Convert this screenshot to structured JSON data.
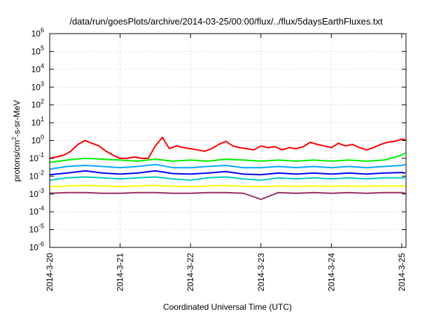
{
  "chart_data": {
    "type": "line",
    "title": "/data/run/goesPlots/archive/2014-03-25/00:00/flux/../flux/5daysEarthFluxes.txt",
    "xlabel": "Coordinated Universal Time (UTC)",
    "ylabel": {
      "prefix": "protons/cm",
      "sup": "2",
      "suffix": "-s-sr-MeV"
    },
    "yscale": "log",
    "ylim": [
      1e-06,
      1000000.0
    ],
    "y_ticks": [
      {
        "value": 1e-06,
        "base": "10",
        "exp": "-6"
      },
      {
        "value": 1e-05,
        "base": "10",
        "exp": "-5"
      },
      {
        "value": 0.0001,
        "base": "10",
        "exp": "-4"
      },
      {
        "value": 0.001,
        "base": "10",
        "exp": "-3"
      },
      {
        "value": 0.01,
        "base": "10",
        "exp": "-2"
      },
      {
        "value": 0.1,
        "base": "10",
        "exp": "-1"
      },
      {
        "value": 1.0,
        "base": "10",
        "exp": "0"
      },
      {
        "value": 10.0,
        "base": "10",
        "exp": "1"
      },
      {
        "value": 100.0,
        "base": "10",
        "exp": "2"
      },
      {
        "value": 1000.0,
        "base": "10",
        "exp": "3"
      },
      {
        "value": 10000.0,
        "base": "10",
        "exp": "4"
      },
      {
        "value": 100000.0,
        "base": "10",
        "exp": "5"
      },
      {
        "value": 1000000.0,
        "base": "10",
        "exp": "6"
      }
    ],
    "x_ticks": [
      {
        "day": 0,
        "label": "2014-3-20"
      },
      {
        "day": 1,
        "label": "2014-3-21"
      },
      {
        "day": 2,
        "label": "2014-3-22"
      },
      {
        "day": 3,
        "label": "2014-3-23"
      },
      {
        "day": 4,
        "label": "2014-3-24"
      },
      {
        "day": 5,
        "label": "2014-3-25"
      }
    ],
    "xlim_days": [
      0,
      5.06
    ],
    "grid": true,
    "legend": "none",
    "series": [
      {
        "color": "#ff0000",
        "x": [
          0,
          0.1,
          0.2,
          0.3,
          0.4,
          0.5,
          0.6,
          0.7,
          0.8,
          0.9,
          1.0,
          1.1,
          1.2,
          1.3,
          1.4,
          1.5,
          1.6,
          1.7,
          1.8,
          1.9,
          2.0,
          2.1,
          2.2,
          2.3,
          2.4,
          2.5,
          2.6,
          2.7,
          2.8,
          2.9,
          3.0,
          3.1,
          3.2,
          3.3,
          3.4,
          3.5,
          3.6,
          3.7,
          3.8,
          3.9,
          4.0,
          4.1,
          4.2,
          4.3,
          4.4,
          4.5,
          4.6,
          4.7,
          4.8,
          4.9,
          5.0,
          5.05
        ],
        "y": [
          0.1,
          0.12,
          0.15,
          0.25,
          0.6,
          1.0,
          0.7,
          0.5,
          0.25,
          0.15,
          0.1,
          0.1,
          0.12,
          0.1,
          0.1,
          0.5,
          1.5,
          0.35,
          0.5,
          0.4,
          0.35,
          0.3,
          0.25,
          0.35,
          0.6,
          0.9,
          0.5,
          0.4,
          0.35,
          0.3,
          0.5,
          0.4,
          0.45,
          0.3,
          0.4,
          0.35,
          0.45,
          0.8,
          0.6,
          0.5,
          0.4,
          0.7,
          0.5,
          0.6,
          0.4,
          0.3,
          0.4,
          0.6,
          0.8,
          0.9,
          1.2,
          1.1
        ]
      },
      {
        "color": "#00ee00",
        "x": [
          0,
          0.25,
          0.5,
          0.75,
          1.0,
          1.25,
          1.5,
          1.75,
          2.0,
          2.25,
          2.5,
          2.75,
          3.0,
          3.25,
          3.5,
          3.75,
          4.0,
          4.25,
          4.5,
          4.75,
          5.0,
          5.05
        ],
        "y": [
          0.06,
          0.08,
          0.1,
          0.09,
          0.08,
          0.07,
          0.09,
          0.07,
          0.08,
          0.07,
          0.09,
          0.08,
          0.07,
          0.08,
          0.07,
          0.08,
          0.07,
          0.08,
          0.07,
          0.08,
          0.15,
          0.2
        ]
      },
      {
        "color": "#00aaff",
        "x": [
          0,
          0.25,
          0.5,
          0.75,
          1.0,
          1.25,
          1.5,
          1.75,
          2.0,
          2.25,
          2.5,
          2.75,
          3.0,
          3.25,
          3.5,
          3.75,
          4.0,
          4.25,
          4.5,
          4.75,
          5.0,
          5.05
        ],
        "y": [
          0.025,
          0.035,
          0.04,
          0.035,
          0.03,
          0.035,
          0.045,
          0.03,
          0.03,
          0.035,
          0.04,
          0.03,
          0.03,
          0.035,
          0.03,
          0.035,
          0.03,
          0.035,
          0.03,
          0.035,
          0.04,
          0.045
        ]
      },
      {
        "color": "#0000ff",
        "x": [
          0,
          0.25,
          0.5,
          0.75,
          1.0,
          1.25,
          1.5,
          1.75,
          2.0,
          2.25,
          2.5,
          2.75,
          3.0,
          3.25,
          3.5,
          3.75,
          4.0,
          4.25,
          4.5,
          4.75,
          5.0,
          5.05
        ],
        "y": [
          0.012,
          0.015,
          0.02,
          0.015,
          0.013,
          0.015,
          0.02,
          0.014,
          0.013,
          0.015,
          0.018,
          0.013,
          0.012,
          0.015,
          0.013,
          0.015,
          0.013,
          0.015,
          0.013,
          0.015,
          0.016,
          0.015
        ]
      },
      {
        "color": "#00cccc",
        "x": [
          0,
          0.25,
          0.5,
          0.75,
          1.0,
          1.25,
          1.5,
          1.75,
          2.0,
          2.25,
          2.5,
          2.75,
          3.0,
          3.25,
          3.5,
          3.75,
          4.0,
          4.25,
          4.5,
          4.75,
          5.0,
          5.05
        ],
        "y": [
          0.006,
          0.008,
          0.009,
          0.008,
          0.007,
          0.008,
          0.009,
          0.007,
          0.006,
          0.008,
          0.009,
          0.007,
          0.006,
          0.008,
          0.007,
          0.008,
          0.007,
          0.008,
          0.007,
          0.008,
          0.008,
          0.008
        ]
      },
      {
        "color": "#ffff00",
        "x": [
          0,
          0.25,
          0.5,
          0.75,
          1.0,
          1.25,
          1.5,
          1.75,
          2.0,
          2.25,
          2.5,
          2.75,
          3.0,
          3.25,
          3.5,
          3.75,
          4.0,
          4.25,
          4.5,
          4.75,
          5.0,
          5.05
        ],
        "y": [
          0.0025,
          0.0028,
          0.003,
          0.0028,
          0.0026,
          0.0028,
          0.003,
          0.0027,
          0.0026,
          0.0028,
          0.003,
          0.0027,
          0.0026,
          0.0028,
          0.0027,
          0.0028,
          0.0027,
          0.0028,
          0.0027,
          0.0028,
          0.0028,
          0.0028
        ]
      },
      {
        "color": "#993366",
        "x": [
          0,
          0.25,
          0.5,
          0.75,
          1.0,
          1.25,
          1.5,
          1.75,
          2.0,
          2.25,
          2.5,
          2.75,
          3.0,
          3.25,
          3.5,
          3.75,
          4.0,
          4.25,
          4.5,
          4.75,
          5.0,
          5.05
        ],
        "y": [
          0.0011,
          0.0012,
          0.0012,
          0.0011,
          0.0011,
          0.0012,
          0.0012,
          0.0011,
          0.0011,
          0.0012,
          0.0012,
          0.0011,
          0.0005,
          0.0012,
          0.0011,
          0.0012,
          0.0011,
          0.0012,
          0.0011,
          0.0012,
          0.0012,
          0.0011
        ]
      }
    ]
  }
}
